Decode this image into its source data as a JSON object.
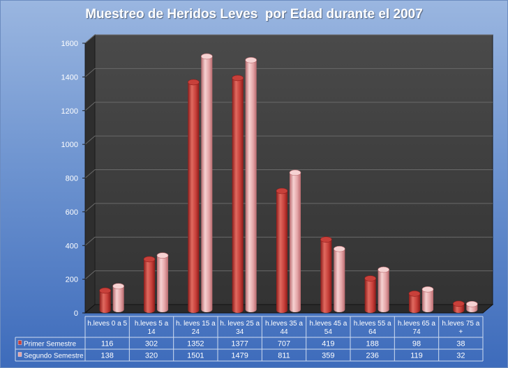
{
  "chart_data": {
    "type": "bar",
    "title": "Muestreo de Heridos Leves  por Edad durante el 2007",
    "categories": [
      [
        "h.leves 0 a 5"
      ],
      [
        "h.leves 5 a",
        "14"
      ],
      [
        "h. leves 15 a",
        "24"
      ],
      [
        "h. leves 25 a",
        "34"
      ],
      [
        "h.leves 35 a",
        "44"
      ],
      [
        "h.leves 45 a",
        "54"
      ],
      [
        "h.leves 55 a",
        "64"
      ],
      [
        "h.leves 65 a",
        "74"
      ],
      [
        "h.leves 75 a",
        "+"
      ]
    ],
    "series": [
      {
        "name": "Primer Semestre",
        "values": [
          116,
          302,
          1352,
          1377,
          707,
          419,
          188,
          98,
          38
        ]
      },
      {
        "name": "Segundo Semestre",
        "values": [
          138,
          320,
          1501,
          1479,
          811,
          359,
          236,
          119,
          32
        ]
      }
    ],
    "yticks": [
      "0",
      "200",
      "400",
      "600",
      "800",
      "1000",
      "1200",
      "1400",
      "1600"
    ],
    "ylim": [
      0,
      1600
    ],
    "grid": true,
    "legend": "data-table",
    "colors": {
      "series1_dark": "#8e1c1a",
      "series1_mid": "#c8403a",
      "series1_light": "#e06a60",
      "series2_dark": "#b86a6e",
      "series2_mid": "#e4a4a6",
      "series2_light": "#f6d2d2",
      "plot_back": "#3e3e3e",
      "plot_floor": "#2a2a2a"
    }
  }
}
